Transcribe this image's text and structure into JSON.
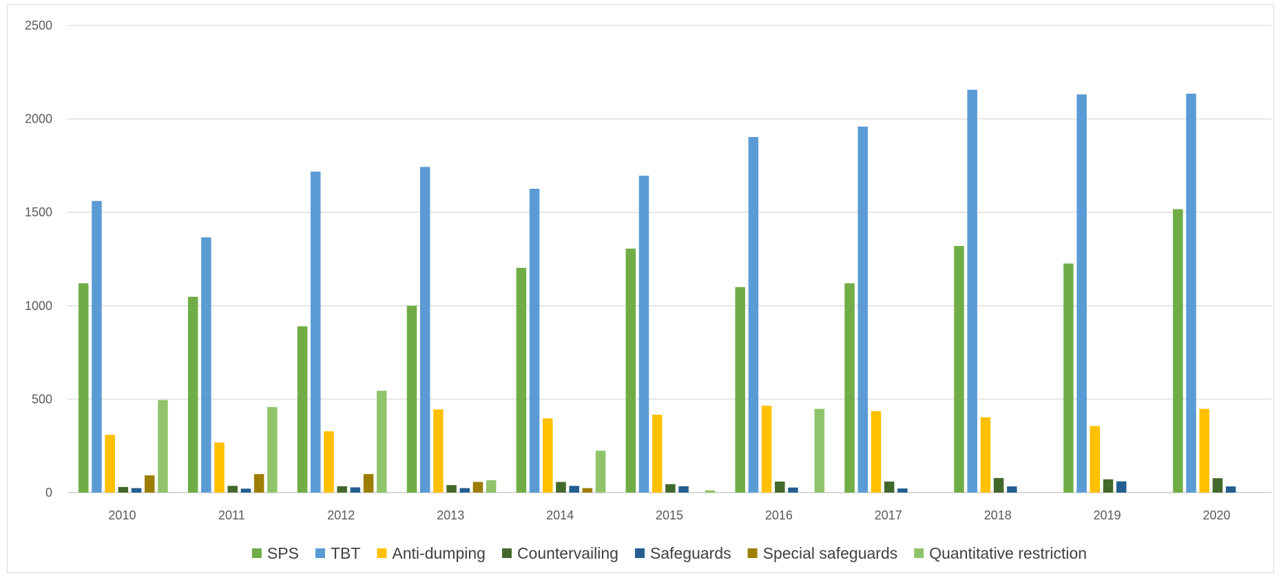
{
  "chart_data": {
    "type": "bar",
    "title": "",
    "xlabel": "",
    "ylabel": "",
    "ylim": [
      0,
      2500
    ],
    "yticks": [
      0,
      500,
      1000,
      1500,
      2000,
      2500
    ],
    "grid": true,
    "legend_position": "bottom",
    "categories": [
      "2010",
      "2011",
      "2012",
      "2013",
      "2014",
      "2015",
      "2016",
      "2017",
      "2018",
      "2019",
      "2020"
    ],
    "series": [
      {
        "name": "SPS",
        "color": "#70ad47",
        "values": [
          1120,
          1048,
          890,
          1000,
          1203,
          1306,
          1100,
          1120,
          1320,
          1226,
          1517
        ]
      },
      {
        "name": "TBT",
        "color": "#5b9bd5",
        "values": [
          1561,
          1366,
          1718,
          1743,
          1626,
          1696,
          1903,
          1959,
          2156,
          2131,
          2135
        ]
      },
      {
        "name": "Anti-dumping",
        "color": "#ffc000",
        "values": [
          309,
          268,
          328,
          445,
          397,
          417,
          465,
          436,
          403,
          356,
          448
        ]
      },
      {
        "name": "Countervailing",
        "color": "#43682b",
        "values": [
          30,
          36,
          34,
          40,
          57,
          45,
          59,
          59,
          78,
          71,
          77
        ]
      },
      {
        "name": "Safeguards",
        "color": "#255e91",
        "values": [
          24,
          21,
          28,
          24,
          36,
          34,
          27,
          22,
          33,
          60,
          33
        ]
      },
      {
        "name": "Special safeguards",
        "color": "#9e7d05",
        "values": [
          92,
          99,
          99,
          57,
          24,
          0,
          0,
          0,
          0,
          0,
          0
        ]
      },
      {
        "name": "Quantitative restriction",
        "color": "#8fc46a",
        "values": [
          495,
          458,
          545,
          66,
          224,
          12,
          448,
          0,
          0,
          0,
          0
        ]
      }
    ]
  }
}
